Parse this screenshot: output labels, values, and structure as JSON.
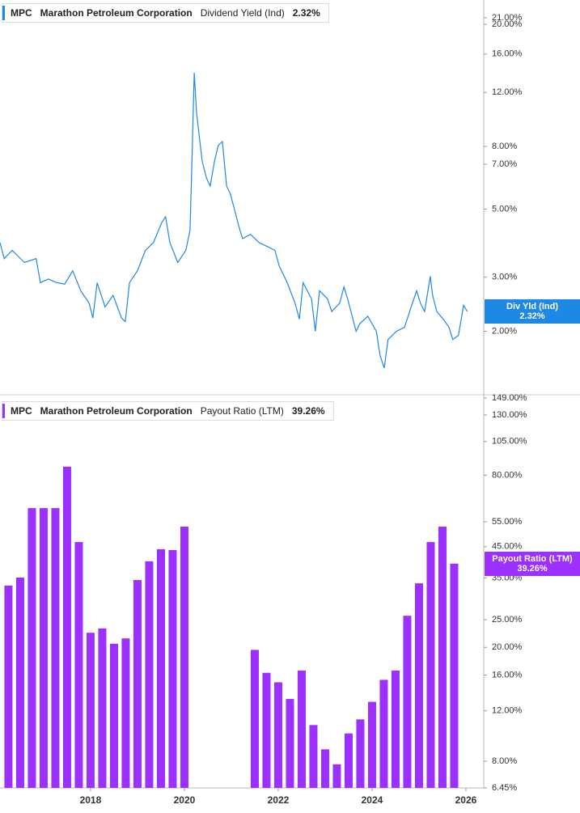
{
  "chart_data": [
    {
      "type": "line",
      "ticker": "MPC",
      "company": "Marathon Petroleum Corporation",
      "metric": "Dividend Yield (Ind)",
      "current": 2.32,
      "current_label": "2.32%",
      "badge_label": "Div Yld (Ind)",
      "color": "#1e88e5",
      "log": true,
      "xlim": [
        2016.07,
        2026.38
      ],
      "ylim": [
        1.25,
        24
      ],
      "yticks": [
        {
          "value": 21,
          "label": "21.00%"
        },
        {
          "value": 20,
          "label": "20.00%"
        },
        {
          "value": 16,
          "label": "16.00%"
        },
        {
          "value": 12,
          "label": "12.00%"
        },
        {
          "value": 8,
          "label": "8.00%"
        },
        {
          "value": 7,
          "label": "7.00%"
        },
        {
          "value": 5,
          "label": "5.00%"
        },
        {
          "value": 3,
          "label": "3.00%"
        },
        {
          "value": 2,
          "label": "2.00%"
        }
      ],
      "x": [
        2016.07,
        2016.16,
        2016.33,
        2016.59,
        2016.84,
        2016.93,
        2017.1,
        2017.28,
        2017.45,
        2017.62,
        2017.79,
        2017.97,
        2018.05,
        2018.14,
        2018.31,
        2018.48,
        2018.66,
        2018.74,
        2018.83,
        2019.0,
        2019.17,
        2019.34,
        2019.52,
        2019.6,
        2019.69,
        2019.86,
        2020.03,
        2020.12,
        2020.17,
        2020.21,
        2020.26,
        2020.38,
        2020.47,
        2020.55,
        2020.64,
        2020.72,
        2020.81,
        2020.9,
        2020.98,
        2021.07,
        2021.16,
        2021.24,
        2021.41,
        2021.59,
        2021.76,
        2021.93,
        2022.02,
        2022.19,
        2022.36,
        2022.45,
        2022.53,
        2022.71,
        2022.79,
        2022.88,
        2023.05,
        2023.14,
        2023.31,
        2023.4,
        2023.48,
        2023.66,
        2023.74,
        2023.91,
        2024.09,
        2024.17,
        2024.26,
        2024.34,
        2024.52,
        2024.69,
        2024.86,
        2024.95,
        2025.03,
        2025.12,
        2025.24,
        2025.29,
        2025.38,
        2025.52,
        2025.64,
        2025.72,
        2025.84,
        2025.95,
        2026.03
      ],
      "values": [
        3.89,
        3.45,
        3.67,
        3.35,
        3.45,
        2.88,
        2.96,
        2.88,
        2.85,
        3.15,
        2.71,
        2.47,
        2.21,
        2.88,
        2.4,
        2.62,
        2.21,
        2.15,
        2.88,
        3.15,
        3.67,
        3.89,
        4.53,
        4.72,
        3.89,
        3.35,
        3.67,
        4.26,
        8.05,
        13.9,
        10.27,
        7.14,
        6.32,
        5.95,
        7.14,
        8.05,
        8.3,
        5.95,
        5.6,
        4.97,
        4.4,
        4.01,
        4.14,
        3.89,
        3.78,
        3.67,
        3.27,
        2.88,
        2.47,
        2.19,
        2.88,
        2.55,
        2.0,
        2.71,
        2.55,
        2.32,
        2.47,
        2.79,
        2.55,
        2.0,
        2.12,
        2.24,
        2.0,
        1.67,
        1.52,
        1.88,
        2.0,
        2.06,
        2.47,
        2.71,
        2.47,
        2.32,
        3.02,
        2.62,
        2.32,
        2.19,
        2.06,
        1.88,
        1.94,
        2.43,
        2.32
      ]
    },
    {
      "type": "bar",
      "ticker": "MPC",
      "company": "Marathon Petroleum Corporation",
      "metric": "Payout Ratio (LTM)",
      "current": 39.26,
      "current_label": "39.26%",
      "badge_label": "Payout Ratio (LTM)",
      "color": "#9b30ff",
      "log": true,
      "xlim": [
        2016.07,
        2026.38
      ],
      "ylim": [
        6.45,
        149
      ],
      "xticks": [
        2018,
        2020,
        2022,
        2024,
        2026
      ],
      "yticks": [
        {
          "value": 149,
          "label": "149.00%"
        },
        {
          "value": 130,
          "label": "130.00%"
        },
        {
          "value": 105,
          "label": "105.00%"
        },
        {
          "value": 80,
          "label": "80.00%"
        },
        {
          "value": 55,
          "label": "55.00%"
        },
        {
          "value": 45,
          "label": "45.00%"
        },
        {
          "value": 35,
          "label": "35.00%"
        },
        {
          "value": 25,
          "label": "25.00%"
        },
        {
          "value": 20,
          "label": "20.00%"
        },
        {
          "value": 16,
          "label": "16.00%"
        },
        {
          "value": 12,
          "label": "12.00%"
        },
        {
          "value": 8,
          "label": "8.00%"
        },
        {
          "value": 6.45,
          "label": "6.45%"
        }
      ],
      "x": [
        2016.25,
        2016.5,
        2016.75,
        2017.0,
        2017.25,
        2017.5,
        2017.75,
        2018.0,
        2018.25,
        2018.5,
        2018.75,
        2019.0,
        2019.25,
        2019.5,
        2019.75,
        2020.0,
        2021.5,
        2021.75,
        2022.0,
        2022.25,
        2022.5,
        2022.75,
        2023.0,
        2023.25,
        2023.5,
        2023.75,
        2024.0,
        2024.25,
        2024.5,
        2024.75,
        2025.0,
        2025.25,
        2025.5,
        2025.75
      ],
      "values": [
        32.9,
        35.1,
        61.4,
        61.4,
        61.4,
        85.7,
        46.7,
        22.5,
        23.3,
        20.6,
        21.5,
        34.4,
        40.0,
        44.1,
        43.8,
        52.9,
        19.6,
        16.3,
        15.1,
        13.2,
        16.6,
        10.7,
        8.8,
        7.8,
        10.0,
        11.2,
        12.9,
        15.4,
        16.6,
        25.8,
        33.5,
        46.7,
        52.9,
        39.26
      ]
    }
  ]
}
